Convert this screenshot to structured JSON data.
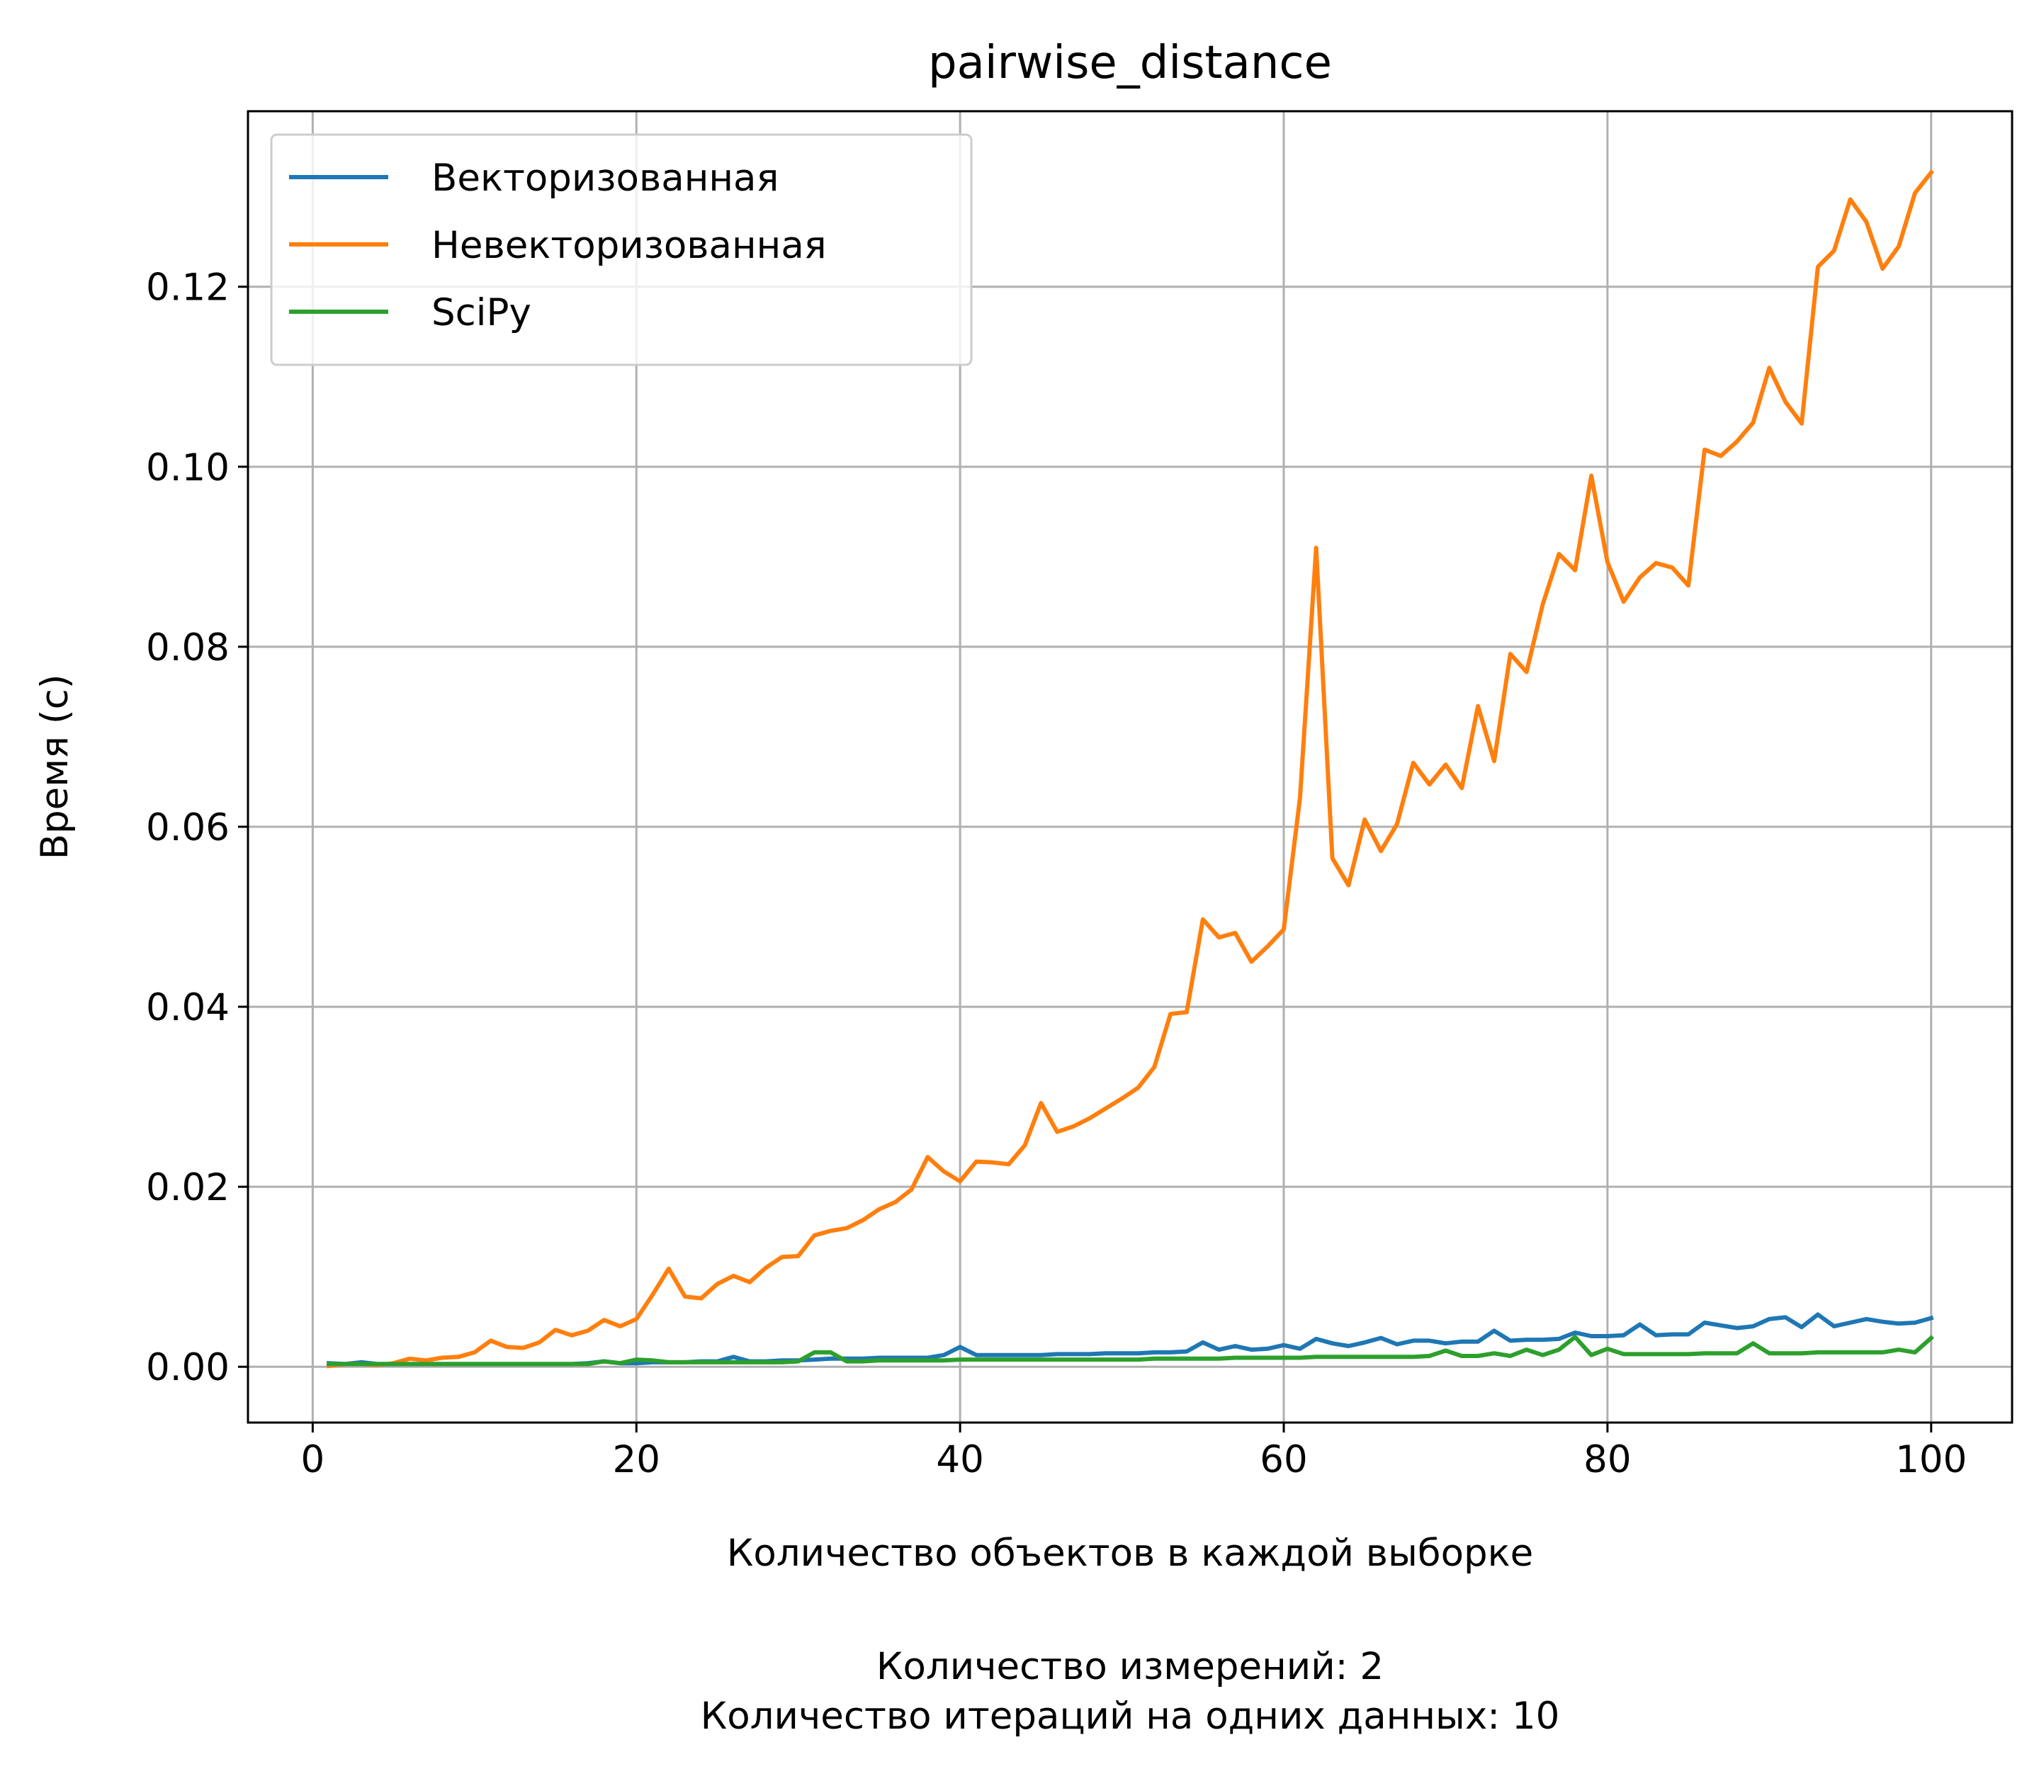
{
  "chart_data": {
    "type": "line",
    "title": "pairwise_distance",
    "xlabel": "Количество объектов в каждой выборке",
    "ylabel": "Время (с)",
    "caption_lines": [
      "Количество измерений: 2",
      "Количество итераций на одних данных: 10"
    ],
    "xlim": [
      -4.0,
      105.0
    ],
    "ylim": [
      -0.0062,
      0.1395
    ],
    "x_ticks": [
      0,
      20,
      40,
      60,
      80,
      100
    ],
    "x_tick_labels": [
      "0",
      "20",
      "40",
      "60",
      "80",
      "100"
    ],
    "y_ticks": [
      0.0,
      0.02,
      0.04,
      0.06,
      0.08,
      0.1,
      0.12
    ],
    "y_tick_labels": [
      "0.00",
      "0.02",
      "0.04",
      "0.06",
      "0.08",
      "0.10",
      "0.12"
    ],
    "grid": true,
    "legend_position": "top-left",
    "x": [
      1,
      2,
      3,
      4,
      5,
      6,
      7,
      8,
      9,
      10,
      11,
      12,
      13,
      14,
      15,
      16,
      17,
      18,
      19,
      20,
      21,
      22,
      23,
      24,
      25,
      26,
      27,
      28,
      29,
      30,
      31,
      32,
      33,
      34,
      35,
      36,
      37,
      38,
      39,
      40,
      41,
      42,
      43,
      44,
      45,
      46,
      47,
      48,
      49,
      50,
      51,
      52,
      53,
      54,
      55,
      56,
      57,
      58,
      59,
      60,
      61,
      62,
      63,
      64,
      65,
      66,
      67,
      68,
      69,
      70,
      71,
      72,
      73,
      74,
      75,
      76,
      77,
      78,
      79,
      80,
      81,
      82,
      83,
      84,
      85,
      86,
      87,
      88,
      89,
      90,
      91,
      92,
      93,
      94,
      95,
      96,
      97,
      98,
      99,
      100
    ],
    "series": [
      {
        "name": "Векторизованная",
        "color": "#1f77b4",
        "values": [
          0.0004,
          0.0003,
          0.0005,
          0.0003,
          0.0003,
          0.0003,
          0.0003,
          0.0003,
          0.0003,
          0.0003,
          0.0003,
          0.0003,
          0.0003,
          0.0003,
          0.0003,
          0.0003,
          0.0004,
          0.0006,
          0.0004,
          0.0004,
          0.0005,
          0.0005,
          0.0005,
          0.0006,
          0.0006,
          0.0011,
          0.0006,
          0.0006,
          0.0007,
          0.0007,
          0.0008,
          0.0009,
          0.0009,
          0.0009,
          0.001,
          0.001,
          0.001,
          0.001,
          0.0013,
          0.0022,
          0.0013,
          0.0013,
          0.0013,
          0.0013,
          0.0013,
          0.0014,
          0.0014,
          0.0014,
          0.0015,
          0.0015,
          0.0015,
          0.0016,
          0.0016,
          0.0017,
          0.0027,
          0.0019,
          0.0023,
          0.0019,
          0.002,
          0.0024,
          0.002,
          0.0031,
          0.0026,
          0.0023,
          0.0027,
          0.0032,
          0.0025,
          0.0029,
          0.0029,
          0.0026,
          0.0028,
          0.0028,
          0.004,
          0.0029,
          0.003,
          0.003,
          0.0031,
          0.0038,
          0.0034,
          0.0034,
          0.0035,
          0.0047,
          0.0035,
          0.0036,
          0.0036,
          0.0049,
          0.0046,
          0.0043,
          0.0045,
          0.0053,
          0.0055,
          0.0044,
          0.0058,
          0.0045,
          0.0049,
          0.0053,
          0.005,
          0.0048,
          0.0049,
          0.0054
        ]
      },
      {
        "name": "Невекторизованная",
        "color": "#ff7f0e",
        "values": [
          0.0001,
          0.0003,
          0.0003,
          0.0002,
          0.0004,
          0.0009,
          0.0007,
          0.001,
          0.0011,
          0.0016,
          0.0029,
          0.0022,
          0.0021,
          0.0027,
          0.0041,
          0.0035,
          0.004,
          0.0052,
          0.0045,
          0.0053,
          0.008,
          0.0109,
          0.0078,
          0.0076,
          0.0092,
          0.0101,
          0.0094,
          0.011,
          0.0122,
          0.0123,
          0.0146,
          0.0151,
          0.0154,
          0.0163,
          0.0175,
          0.0183,
          0.0197,
          0.0233,
          0.0217,
          0.0206,
          0.0228,
          0.0227,
          0.0225,
          0.0246,
          0.0293,
          0.0261,
          0.0267,
          0.0276,
          0.0287,
          0.0298,
          0.031,
          0.0333,
          0.0392,
          0.0394,
          0.0497,
          0.0477,
          0.0482,
          0.045,
          0.0467,
          0.0486,
          0.0632,
          0.091,
          0.0565,
          0.0535,
          0.0608,
          0.0573,
          0.0603,
          0.0671,
          0.0647,
          0.0669,
          0.0643,
          0.0734,
          0.0673,
          0.0792,
          0.0772,
          0.0847,
          0.0903,
          0.0885,
          0.099,
          0.0894,
          0.085,
          0.0877,
          0.0893,
          0.0888,
          0.0868,
          0.1019,
          0.1012,
          0.1028,
          0.1049,
          0.111,
          0.1072,
          0.1048,
          0.1222,
          0.124,
          0.1297,
          0.1272,
          0.122,
          0.1245,
          0.1304,
          0.1327
        ]
      },
      {
        "name": "SciPy",
        "color": "#2ca02c",
        "values": [
          0.0003,
          0.0003,
          0.0003,
          0.0003,
          0.0003,
          0.0003,
          0.0003,
          0.0003,
          0.0003,
          0.0003,
          0.0003,
          0.0003,
          0.0003,
          0.0003,
          0.0003,
          0.0003,
          0.0003,
          0.0006,
          0.0004,
          0.0008,
          0.0007,
          0.0005,
          0.0005,
          0.0005,
          0.0005,
          0.0005,
          0.0005,
          0.0005,
          0.0005,
          0.0006,
          0.0016,
          0.0016,
          0.0006,
          0.0006,
          0.0007,
          0.0007,
          0.0007,
          0.0007,
          0.0007,
          0.0008,
          0.0008,
          0.0008,
          0.0008,
          0.0008,
          0.0008,
          0.0008,
          0.0008,
          0.0008,
          0.0008,
          0.0008,
          0.0008,
          0.0009,
          0.0009,
          0.0009,
          0.0009,
          0.0009,
          0.001,
          0.001,
          0.001,
          0.001,
          0.001,
          0.0011,
          0.0011,
          0.0011,
          0.0011,
          0.0011,
          0.0011,
          0.0011,
          0.0012,
          0.0018,
          0.0012,
          0.0012,
          0.0015,
          0.0012,
          0.0019,
          0.0013,
          0.0019,
          0.0033,
          0.0013,
          0.002,
          0.0014,
          0.0014,
          0.0014,
          0.0014,
          0.0014,
          0.0015,
          0.0015,
          0.0015,
          0.0026,
          0.0015,
          0.0015,
          0.0015,
          0.0016,
          0.0016,
          0.0016,
          0.0016,
          0.0016,
          0.0019,
          0.0016,
          0.0032
        ]
      }
    ]
  }
}
